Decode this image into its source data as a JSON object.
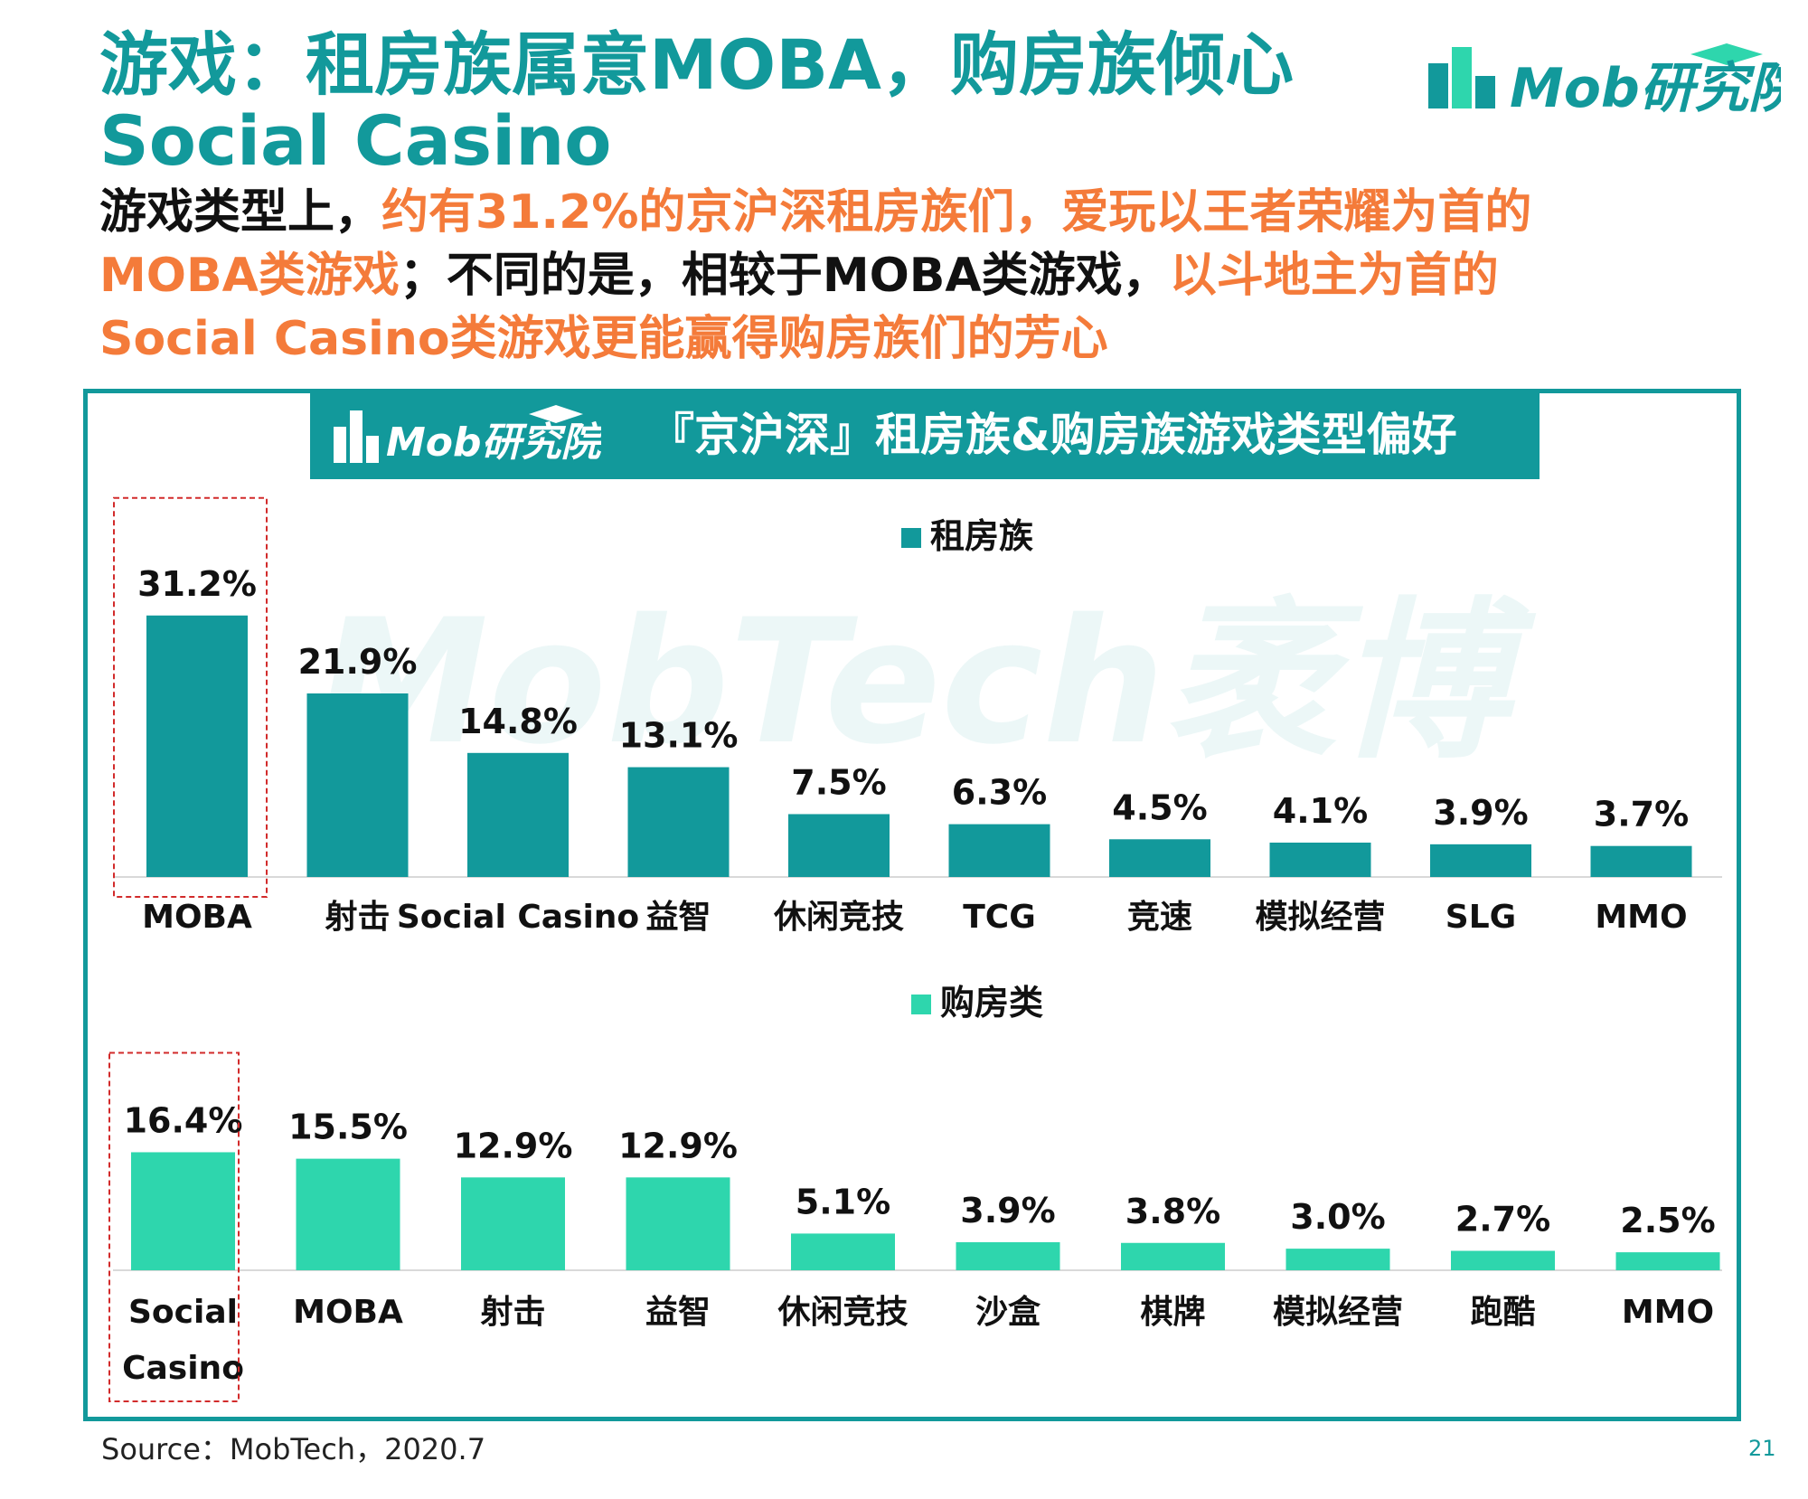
{
  "header": {
    "title": "游戏：租房族属意MOBA，购房族倾心Social Casino",
    "subtitle_parts": [
      {
        "text": "游戏类型上，",
        "highlight": false
      },
      {
        "text": "约有31.2%的京沪深租房族们，爱玩以王者荣耀为首的MOBA类游戏",
        "highlight": true
      },
      {
        "text": "；不同的是，相较于MOBA类游戏，",
        "highlight": false
      },
      {
        "text": "以斗地主为首的Social Casino类游戏更能赢得购房族们的芳心",
        "highlight": true
      }
    ]
  },
  "brand": {
    "logo_text": "Mob研究院",
    "watermark": "MobTech袤博"
  },
  "panel": {
    "title": "『京沪深』租房族&购房族游戏类型偏好",
    "logo_text": "Mob研究院"
  },
  "colors": {
    "primary": "#12999b",
    "highlight": "#f47b3a",
    "series_rent": "#12999b",
    "series_buy": "#2ed6ad"
  },
  "chart_data": [
    {
      "type": "bar",
      "legend": "租房族",
      "categories": [
        "MOBA",
        "射击",
        "Social Casino",
        "益智",
        "休闲竞技",
        "TCG",
        "竞速",
        "模拟经营",
        "SLG",
        "MMO"
      ],
      "values": [
        31.2,
        21.9,
        14.8,
        13.1,
        7.5,
        6.3,
        4.5,
        4.1,
        3.9,
        3.7
      ],
      "value_labels": [
        "31.2%",
        "21.9%",
        "14.8%",
        "13.1%",
        "7.5%",
        "6.3%",
        "4.5%",
        "4.1%",
        "3.9%",
        "3.7%"
      ],
      "ylim": [
        0,
        35
      ],
      "highlighted_index": 0
    },
    {
      "type": "bar",
      "legend": "购房类",
      "categories": [
        "Social Casino",
        "MOBA",
        "射击",
        "益智",
        "休闲竞技",
        "沙盒",
        "棋牌",
        "模拟经营",
        "跑酷",
        "MMO"
      ],
      "values": [
        16.4,
        15.5,
        12.9,
        12.9,
        5.1,
        3.9,
        3.8,
        3.0,
        2.7,
        2.5
      ],
      "value_labels": [
        "16.4%",
        "15.5%",
        "12.9%",
        "12.9%",
        "5.1%",
        "3.9%",
        "3.8%",
        "3.0%",
        "2.7%",
        "2.5%"
      ],
      "ylim": [
        0,
        20
      ],
      "highlighted_index": 0
    }
  ],
  "footer": {
    "source": "Source：MobTech，2020.7",
    "page_number": "21"
  }
}
